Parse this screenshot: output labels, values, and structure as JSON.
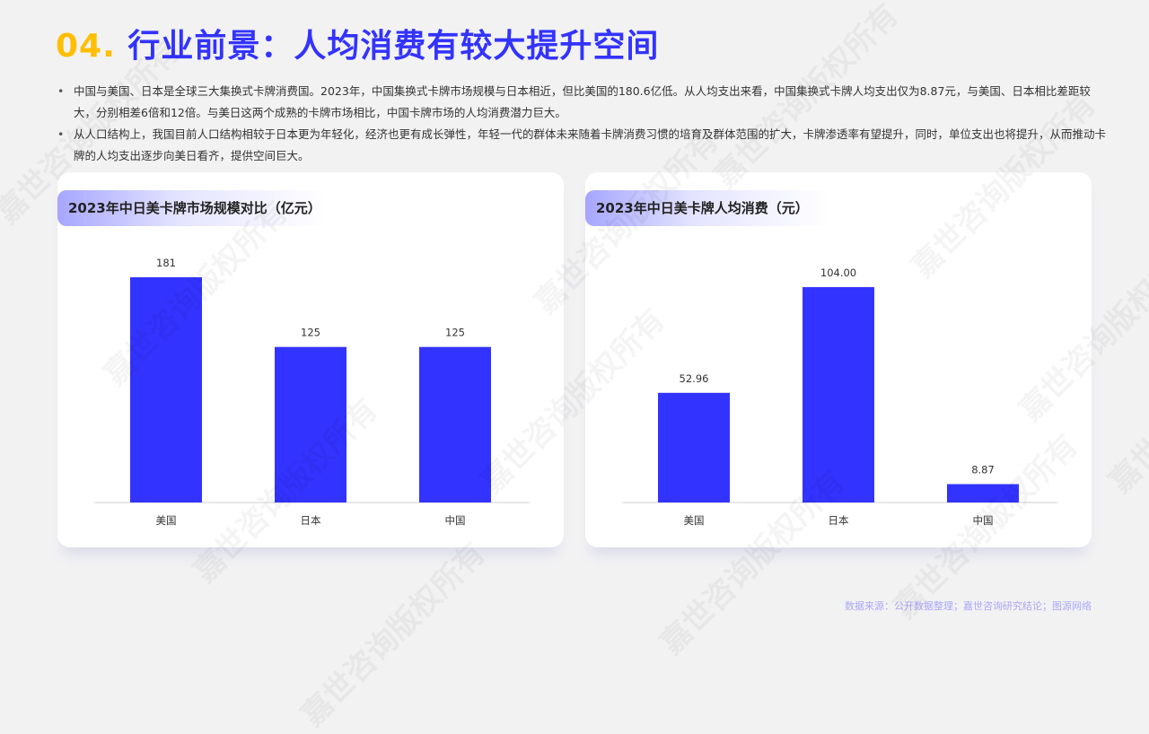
{
  "title": {
    "number": "04.",
    "text": "行业前景：人均消费有较大提升空间"
  },
  "bullets": [
    "中国与美国、日本是全球三大集换式卡牌消费国。2023年，中国集换式卡牌市场规模与日本相近，但比美国的180.6亿低。从人均支出来看，中国集换式卡牌人均支出仅为8.87元，与美国、日本相比差距较大，分别相差6倍和12倍。与美日这两个成熟的卡牌市场相比，中国卡牌市场的人均消费潜力巨大。",
    "从人口结构上，我国目前人口结构相较于日本更为年轻化，经济也更有成长弹性，年轻一代的群体未来随着卡牌消费习惯的培育及群体范围的扩大，卡牌渗透率有望提升，同时，单位支出也将提升，从而推动卡牌的人均支出逐步向美日看齐，提供空间巨大。"
  ],
  "colors": {
    "bar": "#3333ff",
    "accent": "#ffbe00",
    "title": "#3333ff"
  },
  "watermark": "嘉世咨询版权所有",
  "source": "数据来源：公开数据整理；嘉世咨询研究结论；图源网络",
  "chart_data": [
    {
      "type": "bar",
      "title": "2023年中日美卡牌市场规模对比（亿元）",
      "categories": [
        "美国",
        "日本",
        "中国"
      ],
      "values": [
        181,
        125,
        125
      ],
      "labels": [
        "181",
        "125",
        "125"
      ],
      "grid": false
    },
    {
      "type": "bar",
      "title": "2023年中日美卡牌人均消费（元）",
      "categories": [
        "美国",
        "日本",
        "中国"
      ],
      "values": [
        52.96,
        104.0,
        8.87
      ],
      "labels": [
        "52.96",
        "104.00",
        "8.87"
      ],
      "grid": false
    }
  ]
}
